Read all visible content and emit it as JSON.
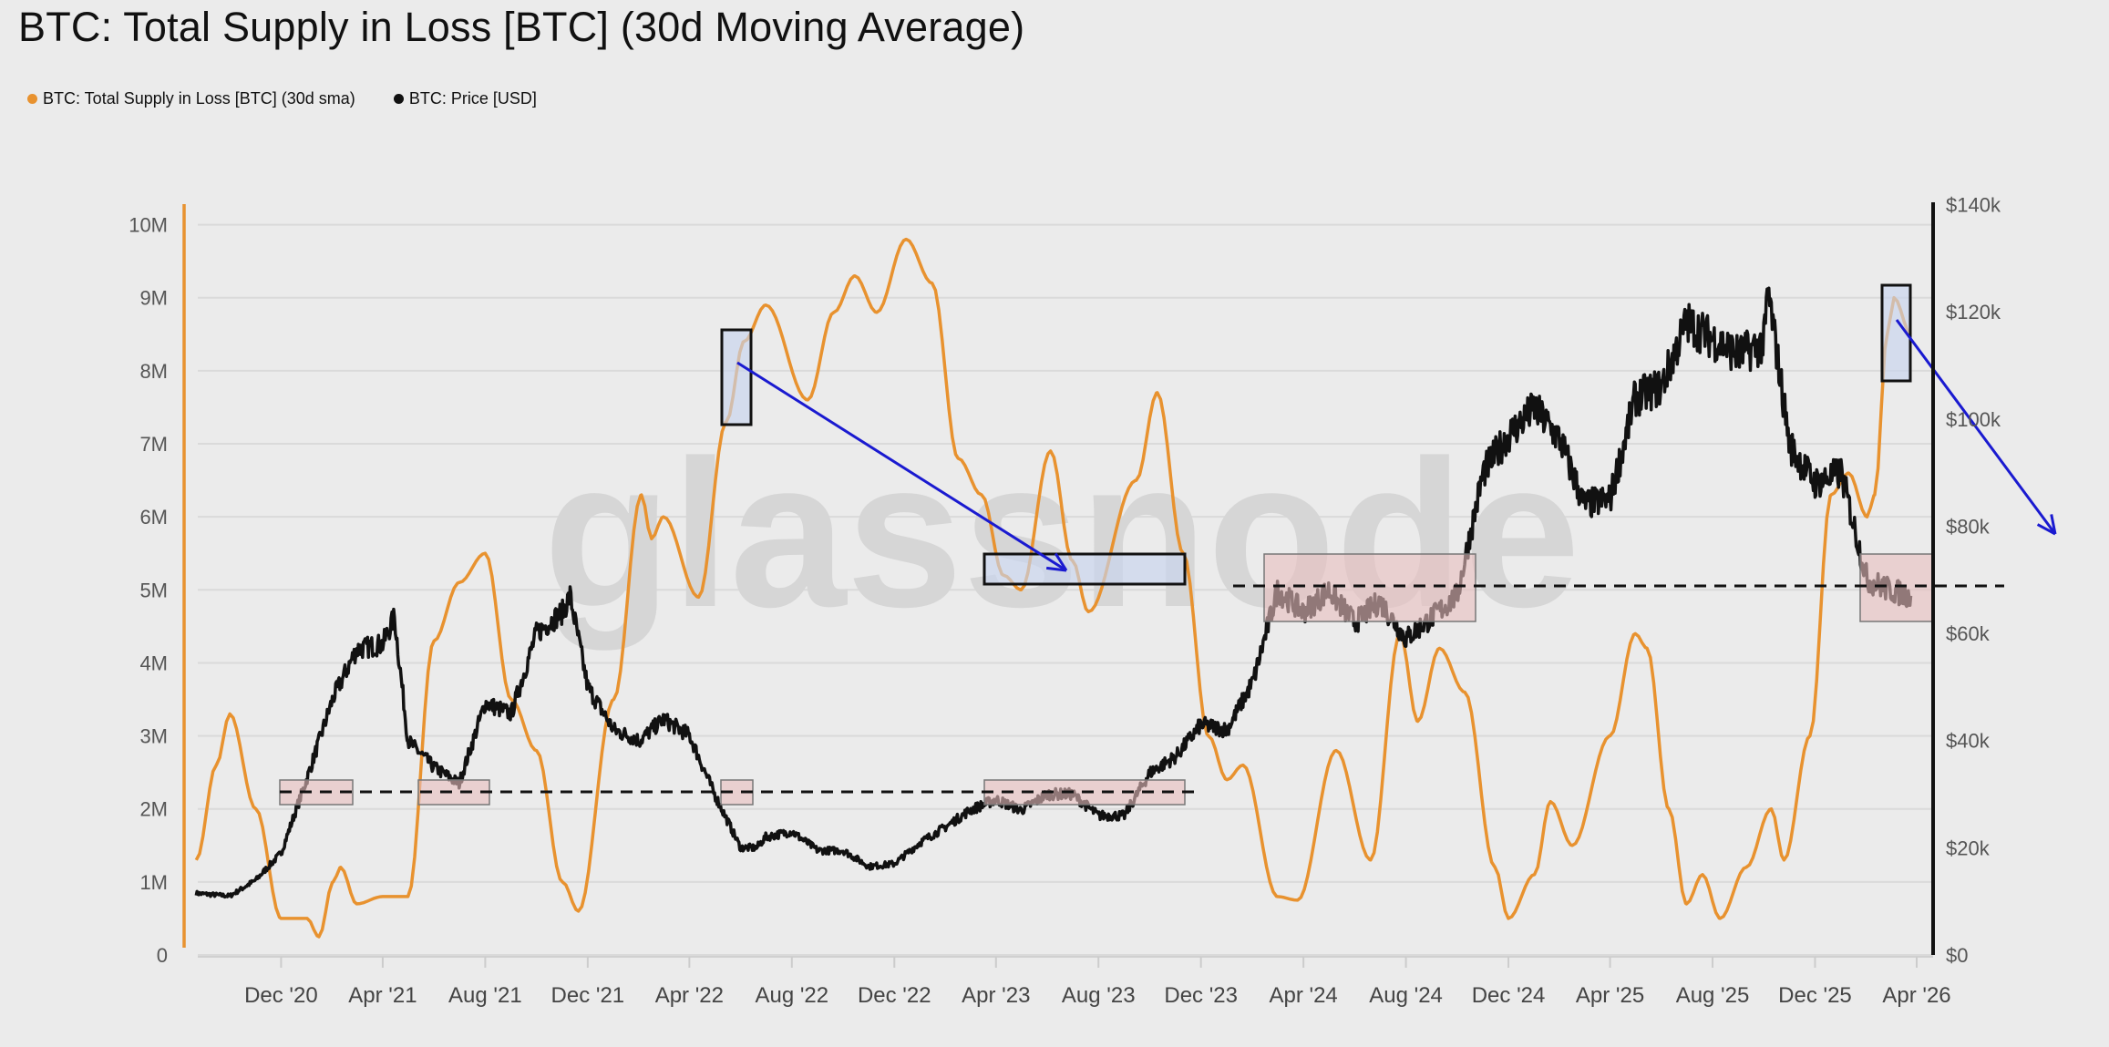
{
  "title": "BTC: Total Supply in Loss [BTC] (30d Moving Average)",
  "watermark": "glassnode",
  "legend": [
    {
      "label": "BTC: Total Supply in Loss [BTC] (30d sma)",
      "color": "#e8922f"
    },
    {
      "label": "BTC: Price [USD]",
      "color": "#111111"
    }
  ],
  "chart_data": {
    "type": "line",
    "title": "BTC: Total Supply in Loss [BTC] (30d Moving Average)",
    "x_tick_labels": [
      "Dec '20",
      "Apr '21",
      "Aug '21",
      "Dec '21",
      "Apr '22",
      "Aug '22",
      "Dec '22",
      "Apr '23",
      "Aug '23",
      "Dec '23",
      "Apr '24",
      "Aug '24",
      "Dec '24",
      "Apr '25",
      "Aug '25",
      "Dec '25",
      "Apr '26"
    ],
    "x_tick_dates": [
      "2020-12-01",
      "2021-04-01",
      "2021-08-01",
      "2021-12-01",
      "2022-04-01",
      "2022-08-01",
      "2022-12-01",
      "2023-04-01",
      "2023-08-01",
      "2023-12-01",
      "2024-04-01",
      "2024-08-01",
      "2024-12-01",
      "2025-04-01",
      "2025-08-01",
      "2025-12-01",
      "2026-04-01"
    ],
    "y_left": {
      "ticks": [
        "0",
        "1M",
        "2M",
        "3M",
        "4M",
        "5M",
        "6M",
        "7M",
        "8M",
        "9M",
        "10M"
      ],
      "ylim": [
        0,
        10300000
      ],
      "color": "#e8922f"
    },
    "y_right": {
      "ticks": [
        "$0",
        "$20k",
        "$40k",
        "$60k",
        "$80k",
        "$100k",
        "$120k",
        "$140k"
      ],
      "ylim": [
        0,
        140000
      ],
      "color": "#111111"
    },
    "grid": true,
    "legend_position": "top-left",
    "series": [
      {
        "name": "BTC: Total Supply in Loss [BTC] (30d sma)",
        "axis": "left",
        "color": "#e8922f",
        "x": [
          "2020-08-22",
          "2020-09-15",
          "2020-10-01",
          "2020-11-01",
          "2020-12-01",
          "2021-01-01",
          "2021-01-15",
          "2021-02-01",
          "2021-02-10",
          "2021-03-01",
          "2021-04-01",
          "2021-05-01",
          "2021-06-01",
          "2021-07-01",
          "2021-08-01",
          "2021-09-01",
          "2021-10-01",
          "2021-11-01",
          "2021-11-20",
          "2022-01-01",
          "2022-02-03",
          "2022-02-15",
          "2022-03-01",
          "2022-04-12",
          "2022-05-15",
          "2022-06-05",
          "2022-07-01",
          "2022-08-20",
          "2022-09-20",
          "2022-10-15",
          "2022-11-10",
          "2022-12-15",
          "2023-01-15",
          "2023-02-15",
          "2023-03-15",
          "2023-04-10",
          "2023-05-01",
          "2023-06-05",
          "2023-07-01",
          "2023-07-20",
          "2023-09-15",
          "2023-10-10",
          "2023-11-10",
          "2023-12-10",
          "2024-01-01",
          "2024-01-20",
          "2024-03-01",
          "2024-03-25",
          "2024-05-10",
          "2024-06-20",
          "2024-07-25",
          "2024-08-15",
          "2024-09-10",
          "2024-10-10",
          "2024-11-15",
          "2024-12-01",
          "2025-01-01",
          "2025-01-20",
          "2025-02-15",
          "2025-04-01",
          "2025-05-01",
          "2025-05-15",
          "2025-06-10",
          "2025-07-01",
          "2025-07-20",
          "2025-08-10",
          "2025-09-10",
          "2025-10-10",
          "2025-10-25",
          "2025-11-25",
          "2025-12-20",
          "2026-01-10",
          "2026-02-01",
          "2026-02-10",
          "2026-02-25",
          "2026-03-05",
          "2026-03-25"
        ],
        "values": [
          1300000,
          2600000,
          3300000,
          2000000,
          500000,
          500000,
          250000,
          1000000,
          1200000,
          700000,
          800000,
          800000,
          4300000,
          5100000,
          5500000,
          3500000,
          2800000,
          1000000,
          600000,
          3500000,
          6300000,
          5700000,
          6000000,
          4900000,
          7300000,
          8400000,
          8900000,
          7600000,
          8800000,
          9300000,
          8800000,
          9800000,
          9200000,
          6800000,
          6300000,
          5200000,
          5000000,
          6900000,
          5400000,
          4700000,
          6500000,
          7700000,
          5500000,
          3000000,
          2400000,
          2600000,
          800000,
          750000,
          2800000,
          1300000,
          4400000,
          3200000,
          4200000,
          3600000,
          1200000,
          500000,
          1100000,
          2100000,
          1500000,
          3000000,
          4400000,
          4200000,
          2000000,
          700000,
          1100000,
          500000,
          1200000,
          2000000,
          1300000,
          3000000,
          6300000,
          6600000,
          6000000,
          6300000,
          8500000,
          9000000,
          8500000
        ]
      },
      {
        "name": "BTC: Price [USD]",
        "axis": "right",
        "color": "#111111",
        "x": [
          "2020-08-22",
          "2020-10-01",
          "2020-11-01",
          "2020-12-01",
          "2021-01-01",
          "2021-02-01",
          "2021-03-01",
          "2021-04-01",
          "2021-04-15",
          "2021-05-01",
          "2021-06-01",
          "2021-07-01",
          "2021-08-01",
          "2021-09-01",
          "2021-10-01",
          "2021-11-01",
          "2021-11-10",
          "2021-12-01",
          "2022-01-01",
          "2022-02-01",
          "2022-03-01",
          "2022-04-01",
          "2022-05-01",
          "2022-06-01",
          "2022-06-20",
          "2022-07-01",
          "2022-08-01",
          "2022-09-01",
          "2022-10-01",
          "2022-11-01",
          "2022-12-01",
          "2023-01-01",
          "2023-02-01",
          "2023-03-01",
          "2023-04-01",
          "2023-05-01",
          "2023-06-01",
          "2023-07-01",
          "2023-08-01",
          "2023-09-01",
          "2023-10-01",
          "2023-11-01",
          "2023-12-01",
          "2024-01-01",
          "2024-02-01",
          "2024-03-01",
          "2024-04-01",
          "2024-05-01",
          "2024-06-01",
          "2024-07-01",
          "2024-08-01",
          "2024-09-01",
          "2024-10-01",
          "2024-11-01",
          "2024-12-01",
          "2025-01-01",
          "2025-02-01",
          "2025-03-01",
          "2025-04-01",
          "2025-05-01",
          "2025-06-01",
          "2025-07-01",
          "2025-08-01",
          "2025-09-01",
          "2025-10-01",
          "2025-10-06",
          "2025-11-01",
          "2025-12-01",
          "2026-01-01",
          "2026-02-01",
          "2026-03-01",
          "2026-03-25"
        ],
        "values": [
          11500,
          11000,
          14000,
          19000,
          33000,
          48000,
          57000,
          58000,
          63000,
          40000,
          35000,
          32000,
          47000,
          45000,
          60000,
          64000,
          67000,
          50000,
          42000,
          40000,
          44000,
          41000,
          30000,
          20000,
          20000,
          22000,
          23000,
          19500,
          19500,
          16500,
          17000,
          21000,
          24000,
          27000,
          29000,
          27000,
          30000,
          30000,
          26000,
          26000,
          34000,
          37000,
          43000,
          42000,
          51000,
          68000,
          64000,
          68000,
          62000,
          66000,
          59000,
          63000,
          67000,
          90000,
          97000,
          102000,
          96000,
          84000,
          85000,
          104000,
          106000,
          118000,
          115000,
          112000,
          114000,
          124000,
          95000,
          88000,
          90000,
          70000,
          68000,
          67000
        ]
      }
    ]
  }
}
